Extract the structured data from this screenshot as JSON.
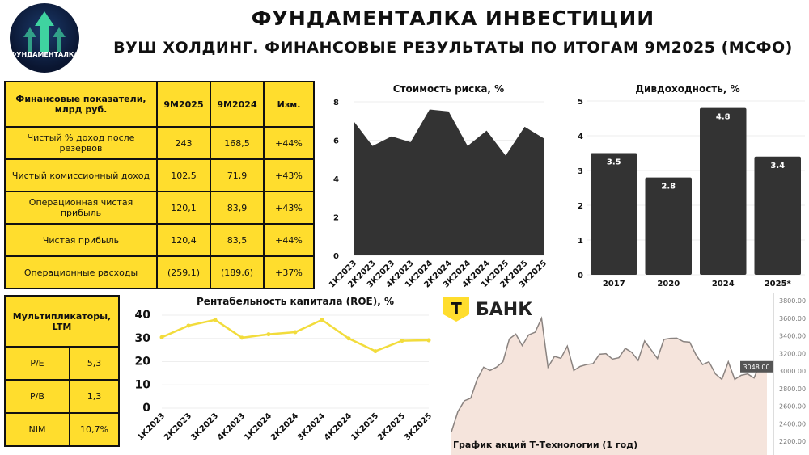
{
  "header": {
    "logo_text": "ФУНДАМЕНТАЛКА",
    "title": "ФУНДАМЕНТАЛКА ИНВЕСТИЦИИ",
    "subtitle": "ВУШ ХОЛДИНГ. ФИНАНСОВЫЕ РЕЗУЛЬТАТЫ ПО ИТОГАМ 9М2025 (МСФО)"
  },
  "fin_table": {
    "headers": [
      "Финансовые показатели, млрд руб.",
      "9М2025",
      "9М2024",
      "Изм."
    ],
    "rows": [
      [
        "Чистый % доход после резервов",
        "243",
        "168,5",
        "+44%"
      ],
      [
        "Чистый комиссионный доход",
        "102,5",
        "71,9",
        "+43%"
      ],
      [
        "Операционная чистая прибыль",
        "120,1",
        "83,9",
        "+43%"
      ],
      [
        "Чистая прибыль",
        "120,4",
        "83,5",
        "+44%"
      ],
      [
        "Операционные расходы",
        "(259,1)",
        "(189,6)",
        "+37%"
      ]
    ]
  },
  "mult_table": {
    "header": "Мультипликаторы, LTM",
    "rows": [
      [
        "P/E",
        "5,3"
      ],
      [
        "P/B",
        "1,3"
      ],
      [
        "NIM",
        "10,7%"
      ]
    ]
  },
  "brand": {
    "logo_letter": "Т",
    "name": "БАНК",
    "color": "#FFDD2D"
  },
  "chart_data": [
    {
      "id": "risk",
      "type": "area",
      "title": "Стоимость риска, %",
      "categories": [
        "1К2023",
        "2К2023",
        "3К2023",
        "4К2023",
        "1К2024",
        "2К2024",
        "3К2024",
        "4К2024",
        "1К2025",
        "2К2025",
        "3К2025"
      ],
      "values": [
        7.0,
        5.7,
        6.2,
        5.9,
        7.6,
        7.5,
        5.7,
        6.5,
        5.2,
        6.7,
        6.1
      ],
      "ylim": [
        0,
        8
      ],
      "yticks": [
        0,
        2,
        4,
        6,
        8
      ],
      "color": "#333333"
    },
    {
      "id": "div",
      "type": "bar",
      "title": "Дивдоходность, %",
      "categories": [
        "2017",
        "2020",
        "2024",
        "2025*"
      ],
      "values": [
        3.5,
        2.8,
        4.8,
        3.4
      ],
      "labels": [
        "3.5",
        "2.8",
        "4.8",
        "3.4"
      ],
      "ylim": [
        0,
        5
      ],
      "yticks": [
        0,
        1,
        2,
        3,
        4,
        5
      ],
      "color": "#333333"
    },
    {
      "id": "roe",
      "type": "line",
      "title": "Рентабельность капитала (ROE), %",
      "categories": [
        "1К2023",
        "2К2023",
        "3К2023",
        "4К2023",
        "1К2024",
        "2К2024",
        "3К2024",
        "4К2024",
        "1К2025",
        "2К2025",
        "3К2025"
      ],
      "values": [
        30.5,
        35.5,
        38,
        30.3,
        31.8,
        32.7,
        38,
        30,
        24.5,
        29,
        29.2
      ],
      "ylim": [
        0,
        40
      ],
      "yticks": [
        0,
        10,
        20,
        30,
        40
      ],
      "color": "#F2DC3C"
    },
    {
      "id": "stock",
      "type": "area",
      "title": "График акций Т-Технологии (1 год)",
      "values": [
        2307,
        2537,
        2660,
        2690,
        2905,
        3043,
        3006,
        3043,
        3104,
        3365,
        3420,
        3288,
        3411,
        3441,
        3600,
        3043,
        3165,
        3144,
        3282,
        3006,
        3052,
        3073,
        3083,
        3190,
        3196,
        3135,
        3150,
        3257,
        3212,
        3120,
        3341,
        3242,
        3141,
        3359,
        3371,
        3374,
        3334,
        3328,
        3181,
        3073,
        3104,
        2966,
        2905,
        3104,
        2905,
        2951,
        2966,
        2920,
        3095,
        3043
      ],
      "ylim": [
        2200,
        3800
      ],
      "yticks": [
        "2200.00",
        "2400.00",
        "2600.00",
        "2800.00",
        "3000.00",
        "3200.00",
        "3400.00",
        "3600.00",
        "3800.00"
      ],
      "last_price": "3048.00",
      "color": "#F5E4DC"
    }
  ]
}
